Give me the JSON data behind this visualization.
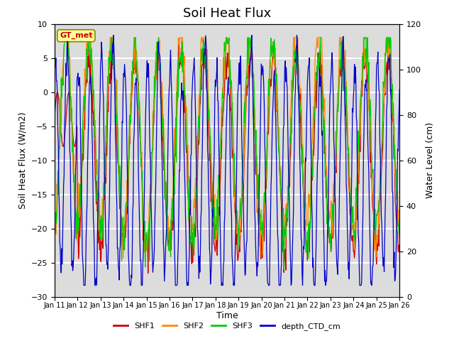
{
  "title": "Soil Heat Flux",
  "xlabel": "Time",
  "ylabel_left": "Soil Heat Flux (W/m2)",
  "ylabel_right": "Water Level (cm)",
  "ylim_left": [
    -30,
    10
  ],
  "ylim_right": [
    0,
    120
  ],
  "yticks_left": [
    -30,
    -25,
    -20,
    -15,
    -10,
    -5,
    0,
    5,
    10
  ],
  "yticks_right": [
    0,
    20,
    40,
    60,
    80,
    100,
    120
  ],
  "xtick_labels": [
    "Jan 11",
    "Jan 12",
    "Jan 13",
    "Jan 14",
    "Jan 15",
    "Jan 16",
    "Jan 17",
    "Jan 18",
    "Jan 19",
    "Jan 20",
    "Jan 21",
    "Jan 22",
    "Jan 23",
    "Jan 24",
    "Jan 25",
    "Jan 26"
  ],
  "legend_entries": [
    "SHF1",
    "SHF2",
    "SHF3",
    "depth_CTD_cm"
  ],
  "colors": {
    "SHF1": "#cc0000",
    "SHF2": "#ff8800",
    "SHF3": "#00cc00",
    "depth_CTD_cm": "#0000cc"
  },
  "gt_met_label": "GT_met",
  "gt_met_color": "#cc0000",
  "gt_met_bg": "#ffff99",
  "inner_bg_color": "#dcdcdc",
  "grid_color": "#ffffff",
  "title_fontsize": 13
}
